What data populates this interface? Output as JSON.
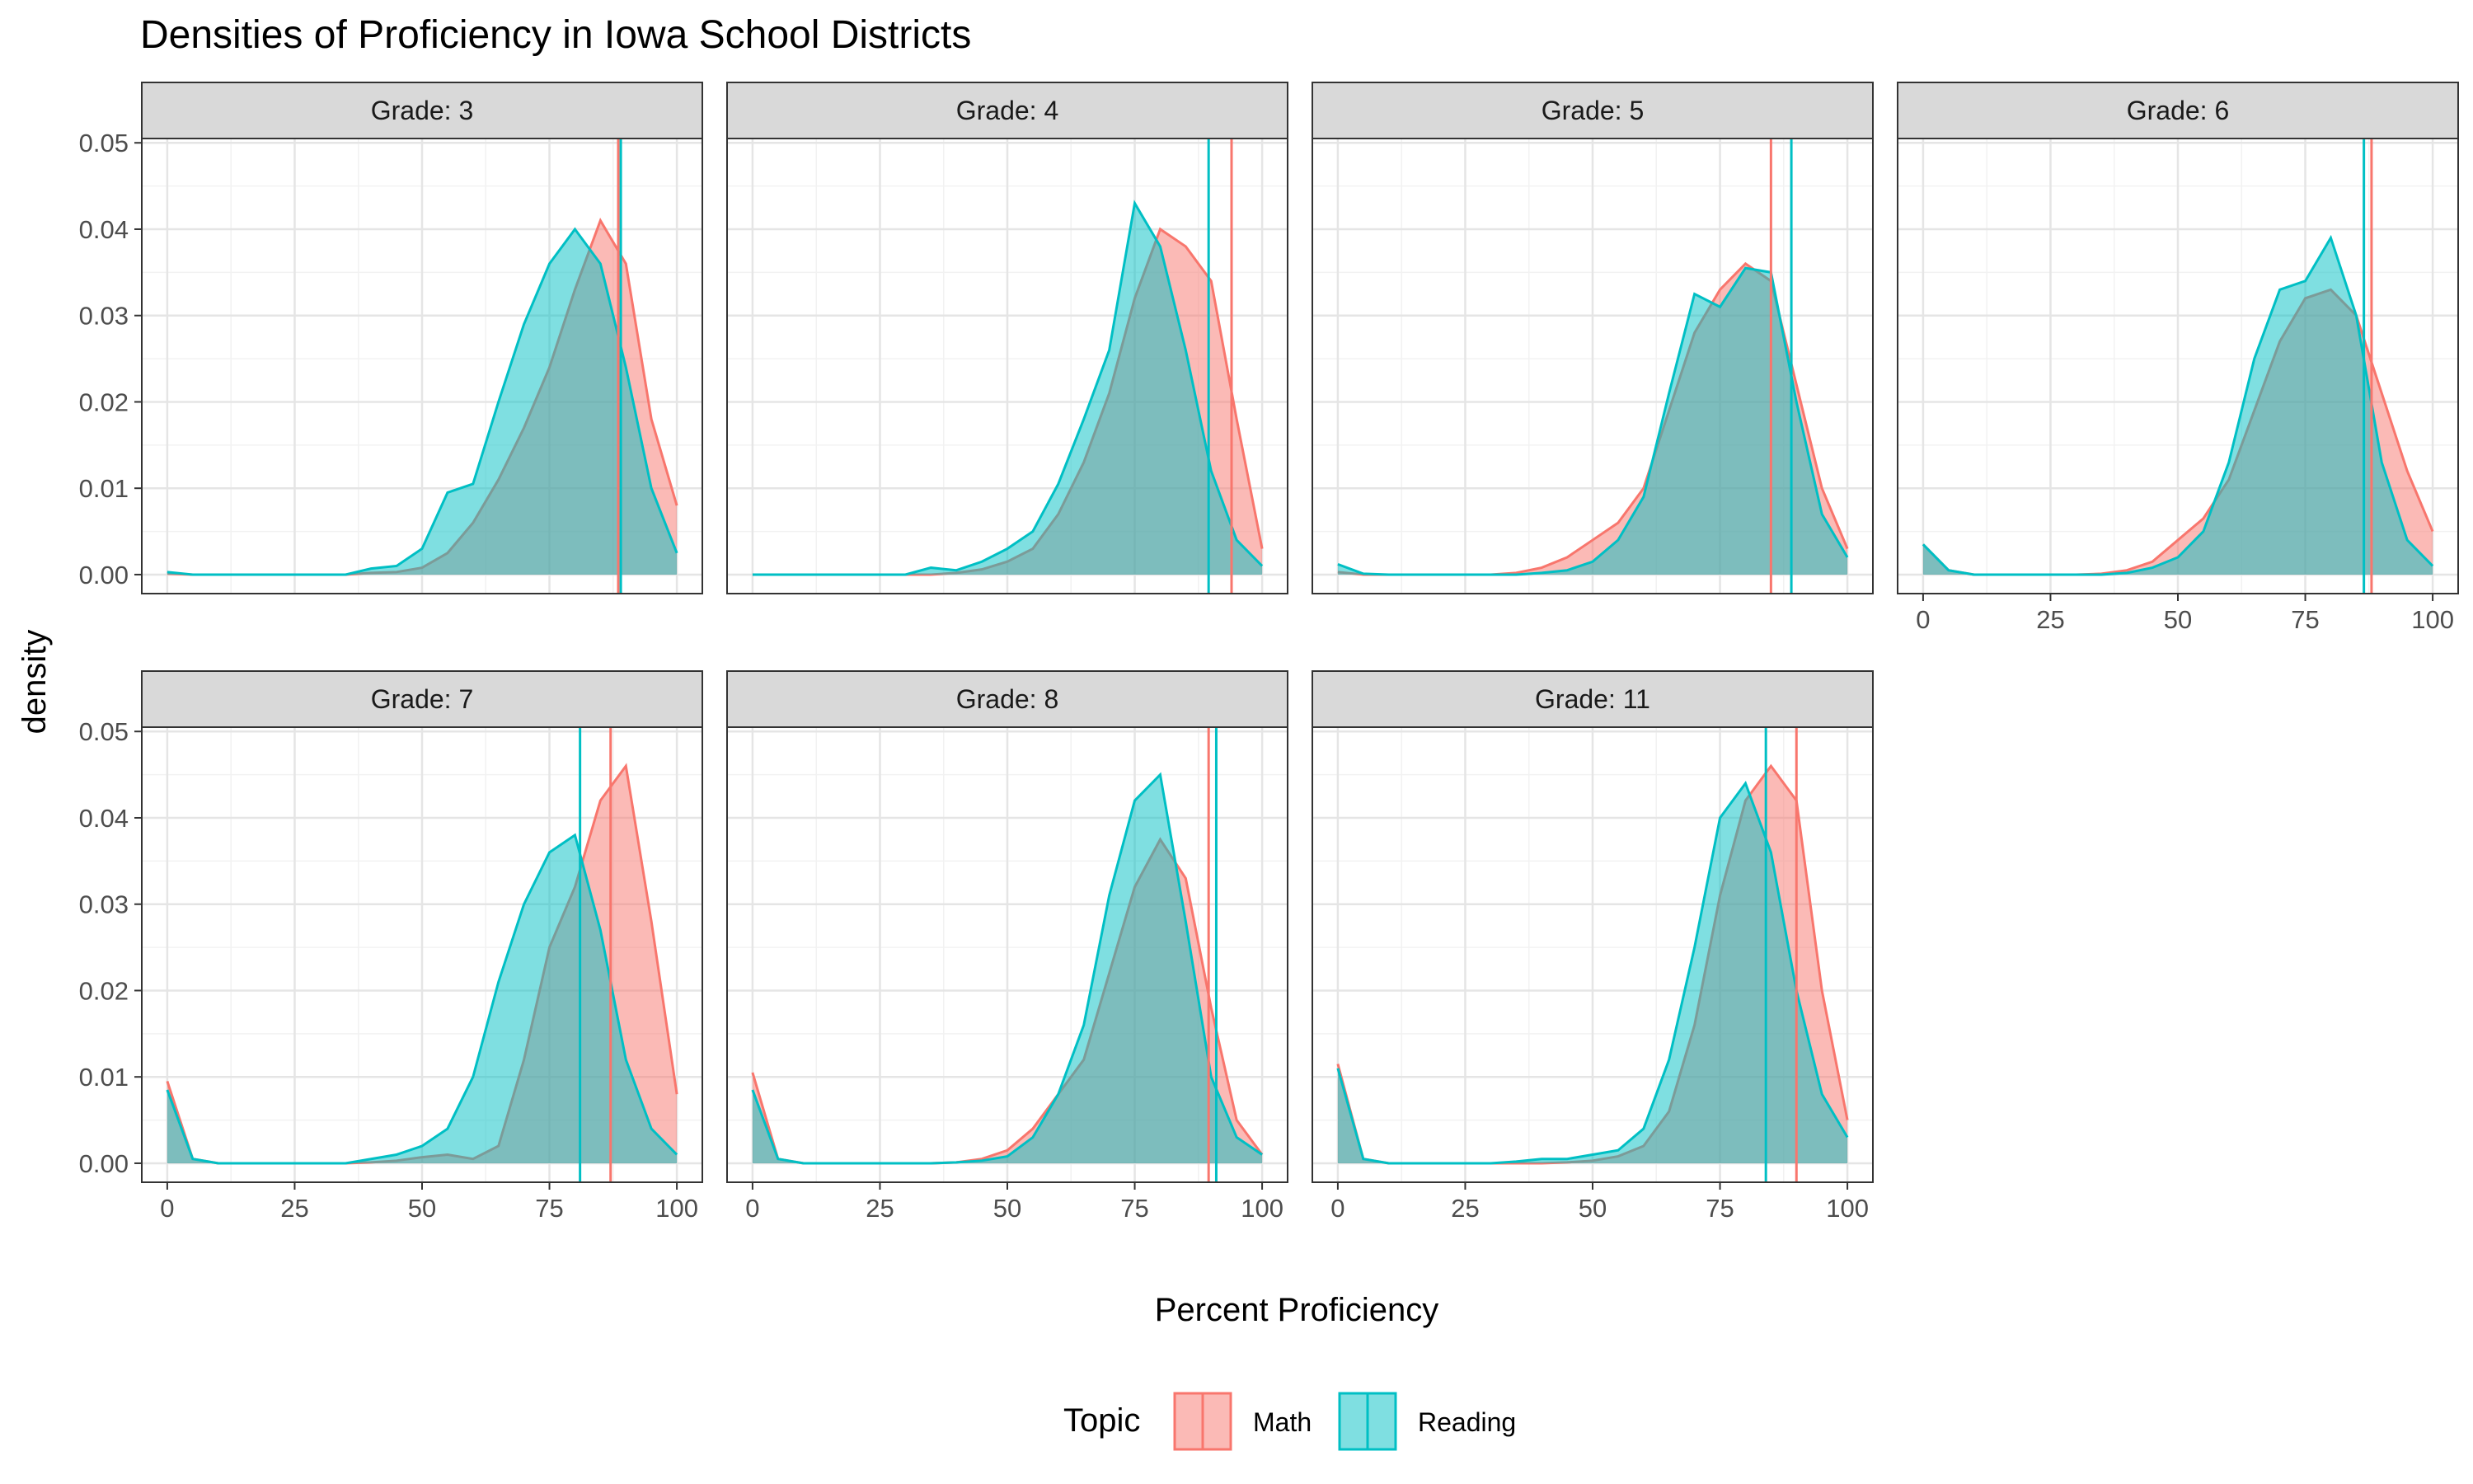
{
  "chart_data": {
    "type": "area",
    "title": "Densities of Proficiency in Iowa School Districts",
    "xlabel": "Percent Proficiency",
    "ylabel": "density",
    "xlim": [
      -5,
      105
    ],
    "ylim": [
      -0.0022,
      0.0505
    ],
    "x_ticks": [
      0,
      25,
      50,
      75,
      100
    ],
    "y_ticks": [
      0.0,
      0.01,
      0.02,
      0.03,
      0.04,
      0.05
    ],
    "y_tick_labels": [
      "0.00",
      "0.01",
      "0.02",
      "0.03",
      "0.04",
      "0.05"
    ],
    "grid": true,
    "legend": {
      "title": "Topic",
      "position": "bottom",
      "entries": [
        {
          "name": "Math",
          "color": "#F8766D"
        },
        {
          "name": "Reading",
          "color": "#00BFC4"
        }
      ]
    },
    "x": [
      0,
      5,
      10,
      15,
      20,
      25,
      30,
      35,
      40,
      45,
      50,
      55,
      60,
      65,
      70,
      75,
      80,
      85,
      90,
      95,
      100
    ],
    "panels": [
      {
        "label": "Grade: 3",
        "series": [
          {
            "name": "Math",
            "values": [
              0.0001,
              0.0,
              0.0,
              0.0,
              0.0,
              0.0,
              0.0,
              0.0,
              0.0002,
              0.0003,
              0.0008,
              0.0025,
              0.006,
              0.011,
              0.017,
              0.024,
              0.033,
              0.041,
              0.036,
              0.018,
              0.008
            ],
            "mean": 88.5
          },
          {
            "name": "Reading",
            "values": [
              0.0003,
              0.0,
              0.0,
              0.0,
              0.0,
              0.0,
              0.0,
              0.0,
              0.0007,
              0.001,
              0.003,
              0.0095,
              0.0105,
              0.02,
              0.029,
              0.036,
              0.04,
              0.036,
              0.024,
              0.01,
              0.0025
            ],
            "mean": 89.0
          }
        ]
      },
      {
        "label": "Grade: 4",
        "series": [
          {
            "name": "Math",
            "values": [
              0.0,
              0.0,
              0.0,
              0.0,
              0.0,
              0.0,
              0.0,
              0.0,
              0.0002,
              0.0006,
              0.0015,
              0.003,
              0.007,
              0.013,
              0.021,
              0.032,
              0.04,
              0.038,
              0.034,
              0.018,
              0.003
            ],
            "mean": 94.0
          },
          {
            "name": "Reading",
            "values": [
              0.0,
              0.0,
              0.0,
              0.0,
              0.0,
              0.0,
              0.0,
              0.0008,
              0.0005,
              0.0015,
              0.003,
              0.005,
              0.0105,
              0.018,
              0.026,
              0.043,
              0.038,
              0.026,
              0.012,
              0.004,
              0.001
            ],
            "mean": 89.5
          }
        ]
      },
      {
        "label": "Grade: 5",
        "series": [
          {
            "name": "Math",
            "values": [
              0.0003,
              0.0,
              0.0,
              0.0,
              0.0,
              0.0,
              0.0,
              0.0002,
              0.0008,
              0.002,
              0.004,
              0.006,
              0.01,
              0.019,
              0.028,
              0.033,
              0.036,
              0.034,
              0.022,
              0.01,
              0.003
            ],
            "mean": 85.0
          },
          {
            "name": "Reading",
            "values": [
              0.0012,
              0.0001,
              0.0,
              0.0,
              0.0,
              0.0,
              0.0,
              0.0,
              0.0002,
              0.0005,
              0.0015,
              0.004,
              0.009,
              0.021,
              0.0325,
              0.031,
              0.0355,
              0.035,
              0.02,
              0.007,
              0.002
            ],
            "mean": 89.0
          }
        ]
      },
      {
        "label": "Grade: 6",
        "series": [
          {
            "name": "Math",
            "values": [
              0.0035,
              0.0005,
              0.0,
              0.0,
              0.0,
              0.0,
              0.0,
              0.0001,
              0.0005,
              0.0015,
              0.004,
              0.0065,
              0.011,
              0.019,
              0.027,
              0.032,
              0.033,
              0.03,
              0.021,
              0.012,
              0.005
            ],
            "mean": 88.0
          },
          {
            "name": "Reading",
            "values": [
              0.0035,
              0.0005,
              0.0,
              0.0,
              0.0,
              0.0,
              0.0,
              0.0,
              0.0002,
              0.0008,
              0.002,
              0.005,
              0.013,
              0.025,
              0.033,
              0.034,
              0.039,
              0.03,
              0.013,
              0.004,
              0.001
            ],
            "mean": 86.5
          }
        ]
      },
      {
        "label": "Grade: 7",
        "series": [
          {
            "name": "Math",
            "values": [
              0.0095,
              0.0005,
              0.0,
              0.0,
              0.0,
              0.0,
              0.0,
              0.0,
              0.0001,
              0.0003,
              0.0007,
              0.001,
              0.0005,
              0.002,
              0.012,
              0.025,
              0.032,
              0.042,
              0.046,
              0.028,
              0.008
            ],
            "mean": 87.0
          },
          {
            "name": "Reading",
            "values": [
              0.0085,
              0.0005,
              0.0,
              0.0,
              0.0,
              0.0,
              0.0,
              0.0,
              0.0005,
              0.001,
              0.002,
              0.004,
              0.01,
              0.021,
              0.03,
              0.036,
              0.038,
              0.027,
              0.012,
              0.004,
              0.001
            ],
            "mean": 81.0
          }
        ]
      },
      {
        "label": "Grade: 8",
        "series": [
          {
            "name": "Math",
            "values": [
              0.0105,
              0.0005,
              0.0,
              0.0,
              0.0,
              0.0,
              0.0,
              0.0,
              0.0001,
              0.0005,
              0.0015,
              0.004,
              0.008,
              0.012,
              0.022,
              0.032,
              0.0375,
              0.033,
              0.018,
              0.005,
              0.001
            ],
            "mean": 89.5
          },
          {
            "name": "Reading",
            "values": [
              0.0085,
              0.0005,
              0.0,
              0.0,
              0.0,
              0.0,
              0.0,
              0.0,
              0.0001,
              0.0003,
              0.0008,
              0.003,
              0.008,
              0.016,
              0.031,
              0.042,
              0.045,
              0.028,
              0.01,
              0.003,
              0.001
            ],
            "mean": 91.0
          }
        ]
      },
      {
        "label": "Grade: 11",
        "series": [
          {
            "name": "Math",
            "values": [
              0.0115,
              0.0005,
              0.0,
              0.0,
              0.0,
              0.0,
              0.0,
              0.0,
              0.0,
              0.0001,
              0.0003,
              0.0008,
              0.002,
              0.006,
              0.016,
              0.031,
              0.042,
              0.046,
              0.042,
              0.02,
              0.005
            ],
            "mean": 90.0
          },
          {
            "name": "Reading",
            "values": [
              0.011,
              0.0005,
              0.0,
              0.0,
              0.0,
              0.0,
              0.0,
              0.0002,
              0.0005,
              0.0005,
              0.001,
              0.0015,
              0.004,
              0.012,
              0.025,
              0.04,
              0.044,
              0.036,
              0.02,
              0.008,
              0.003
            ],
            "mean": 84.0
          }
        ]
      }
    ]
  }
}
